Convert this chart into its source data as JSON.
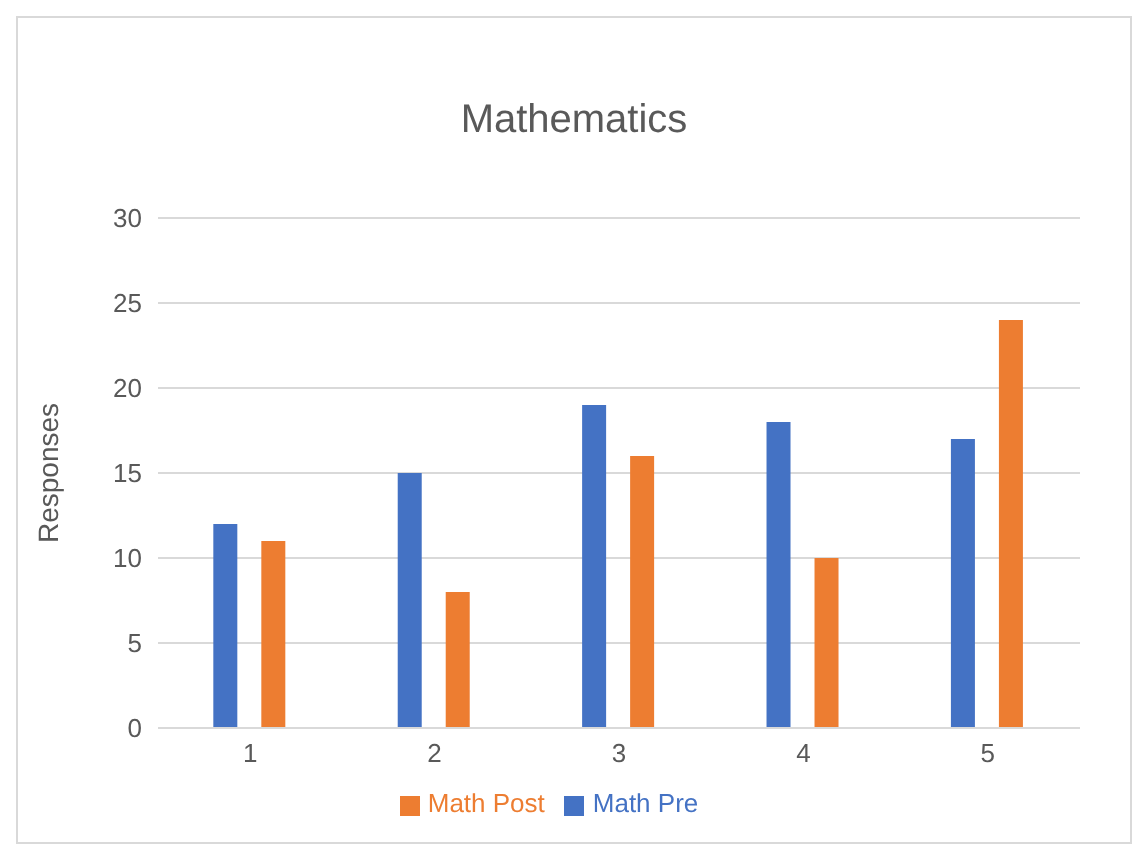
{
  "chart_data": {
    "type": "bar",
    "title": "Mathematics",
    "ylabel": "Responses",
    "categories": [
      "1",
      "2",
      "3",
      "4",
      "5"
    ],
    "series": [
      {
        "name": "Math Pre",
        "color": "#4472c4",
        "values": [
          12,
          15,
          19,
          18,
          17
        ]
      },
      {
        "name": "Math Post",
        "color": "#ed7d31",
        "values": [
          11,
          8,
          16,
          10,
          24
        ]
      }
    ],
    "ylim": [
      0,
      30
    ],
    "yticks": [
      0,
      5,
      10,
      15,
      20,
      25,
      30
    ],
    "grid": "y",
    "legend": "bottom"
  }
}
